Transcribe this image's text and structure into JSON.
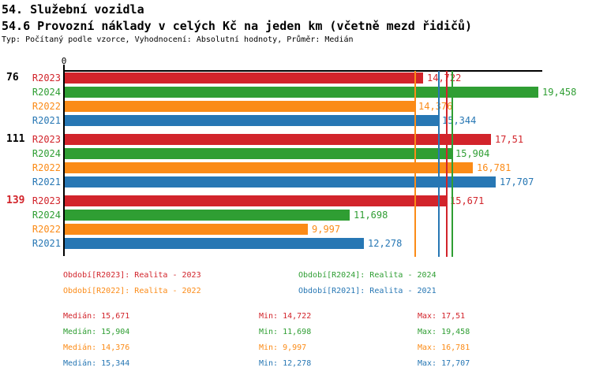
{
  "header": {
    "title": "54. Služební vozidla",
    "subtitle": "54.6 Provozní náklady v celých Kč na jeden km (včetně mezd řidičů)",
    "meta": "Typ: Počítaný podle vzorce, Vyhodnocení: Absolutní hodnoty, Průměr: Medián"
  },
  "colors": {
    "R2023": "#d2242b",
    "R2024": "#2f9e33",
    "R2022": "#fb8b17",
    "R2021": "#2777b4",
    "axis": "#000000",
    "group_label_default": "#000000",
    "group_label_highlight": "#d2242b"
  },
  "chart_data": {
    "type": "bar",
    "orientation": "horizontal",
    "title": "54.6 Provozní náklady v celých Kč na jeden km (včetně mezd řidičů)",
    "axis_zero_label": "0",
    "xlim": [
      0,
      19.458
    ],
    "xmax": 19.458,
    "series_order": [
      "R2023",
      "R2024",
      "R2022",
      "R2021"
    ],
    "groups": [
      {
        "label": "76",
        "highlight": false,
        "bars": [
          {
            "series": "R2023",
            "value": 14.722,
            "display": "14,722"
          },
          {
            "series": "R2024",
            "value": 19.458,
            "display": "19,458"
          },
          {
            "series": "R2022",
            "value": 14.376,
            "display": "14,376"
          },
          {
            "series": "R2021",
            "value": 15.344,
            "display": "15,344"
          }
        ]
      },
      {
        "label": "111",
        "highlight": false,
        "bars": [
          {
            "series": "R2023",
            "value": 17.51,
            "display": "17,51"
          },
          {
            "series": "R2024",
            "value": 15.904,
            "display": "15,904"
          },
          {
            "series": "R2022",
            "value": 16.781,
            "display": "16,781"
          },
          {
            "series": "R2021",
            "value": 17.707,
            "display": "17,707"
          }
        ]
      },
      {
        "label": "139",
        "highlight": true,
        "bars": [
          {
            "series": "R2023",
            "value": 15.671,
            "display": "15,671"
          },
          {
            "series": "R2024",
            "value": 11.698,
            "display": "11,698"
          },
          {
            "series": "R2022",
            "value": 9.997,
            "display": "9,997"
          },
          {
            "series": "R2021",
            "value": 12.278,
            "display": "12,278"
          }
        ]
      }
    ],
    "median_lines": [
      {
        "series": "R2022",
        "value": 14.376
      },
      {
        "series": "R2021",
        "value": 15.344
      },
      {
        "series": "R2023",
        "value": 15.671
      },
      {
        "series": "R2024",
        "value": 15.904
      }
    ]
  },
  "legend": [
    {
      "series": "R2023",
      "label": "Období[R2023]: Realita - 2023",
      "col": 0,
      "row": 0
    },
    {
      "series": "R2024",
      "label": "Období[R2024]: Realita - 2024",
      "col": 1,
      "row": 0
    },
    {
      "series": "R2022",
      "label": "Období[R2022]: Realita - 2022",
      "col": 0,
      "row": 1
    },
    {
      "series": "R2021",
      "label": "Období[R2021]: Realita - 2021",
      "col": 1,
      "row": 1
    }
  ],
  "stats": [
    {
      "series": "R2023",
      "median": "Medián: 15,671",
      "min": "Min: 14,722",
      "max": "Max: 17,51"
    },
    {
      "series": "R2024",
      "median": "Medián: 15,904",
      "min": "Min: 11,698",
      "max": "Max: 19,458"
    },
    {
      "series": "R2022",
      "median": "Medián: 14,376",
      "min": "Min: 9,997",
      "max": "Max: 16,781"
    },
    {
      "series": "R2021",
      "median": "Medián: 15,344",
      "min": "Min: 12,278",
      "max": "Max: 17,707"
    }
  ]
}
